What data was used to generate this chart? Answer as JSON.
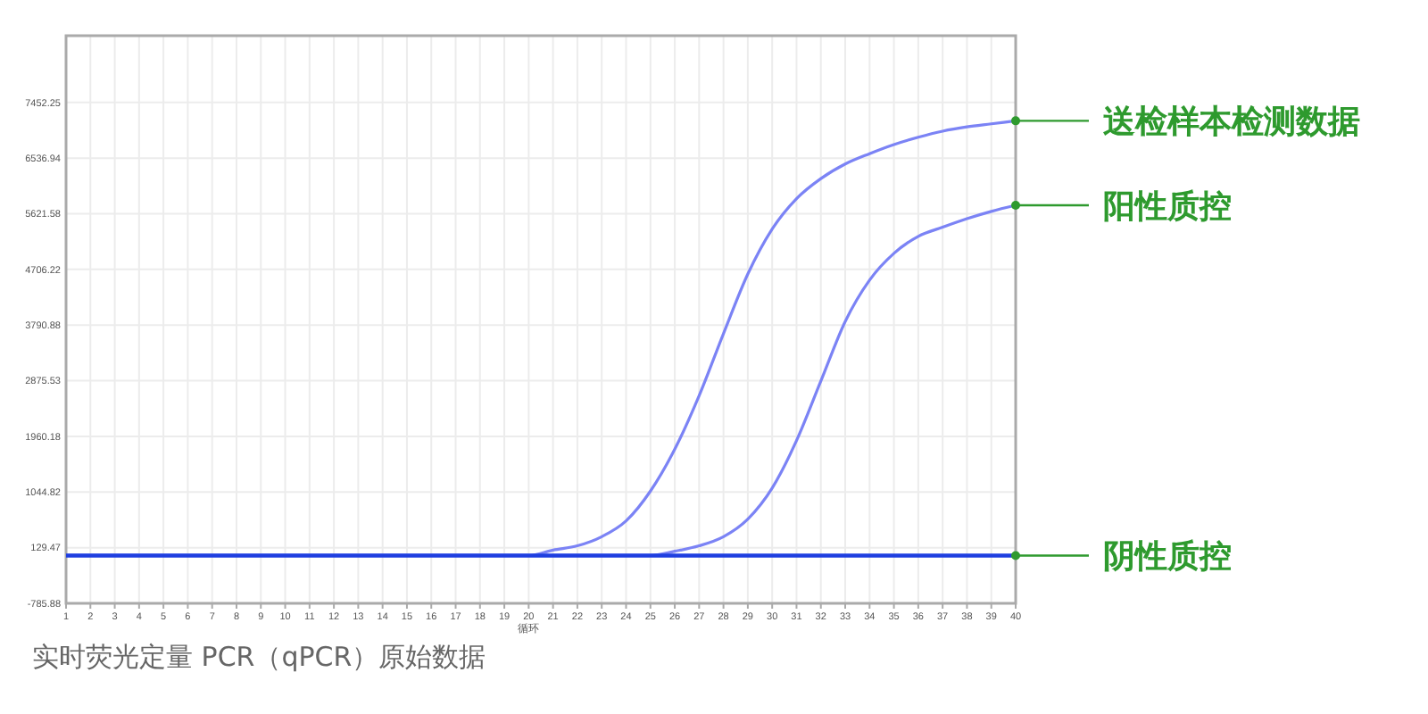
{
  "chart_data": {
    "type": "line",
    "xlabel": "循环",
    "annotations": [
      "实时荧光定量 PCR（qPCR）原始数据"
    ],
    "x": [
      1,
      2,
      3,
      4,
      5,
      6,
      7,
      8,
      9,
      10,
      11,
      12,
      13,
      14,
      15,
      16,
      17,
      18,
      19,
      20,
      21,
      22,
      23,
      24,
      25,
      26,
      27,
      28,
      29,
      30,
      31,
      32,
      33,
      34,
      35,
      36,
      37,
      38,
      39,
      40
    ],
    "series": [
      {
        "name": "送检样本检测数据",
        "color": "#7b83f5",
        "values": [
          0,
          0,
          0,
          0,
          0,
          0,
          0,
          0,
          0,
          0,
          0,
          0,
          0,
          0,
          0,
          0,
          0,
          0,
          0,
          0,
          90,
          160,
          310,
          570,
          1060,
          1750,
          2630,
          3650,
          4630,
          5370,
          5870,
          6200,
          6440,
          6610,
          6760,
          6880,
          6980,
          7050,
          7100,
          7150
        ]
      },
      {
        "name": "阳性质控",
        "color": "#7b83f5",
        "values": [
          0,
          0,
          0,
          0,
          0,
          0,
          0,
          0,
          0,
          0,
          0,
          0,
          0,
          0,
          0,
          0,
          0,
          0,
          0,
          0,
          0,
          0,
          0,
          0,
          0,
          70,
          160,
          310,
          600,
          1110,
          1890,
          2870,
          3850,
          4530,
          4970,
          5250,
          5400,
          5540,
          5660,
          5760
        ]
      },
      {
        "name": "阴性质控",
        "color": "#1f3fe0",
        "values": [
          0,
          0,
          0,
          0,
          0,
          0,
          0,
          0,
          0,
          0,
          0,
          0,
          0,
          0,
          0,
          0,
          0,
          0,
          0,
          0,
          0,
          0,
          0,
          0,
          0,
          0,
          0,
          0,
          0,
          0,
          0,
          0,
          0,
          0,
          0,
          0,
          0,
          0,
          0,
          0
        ]
      }
    ],
    "xlim": [
      1,
      40
    ],
    "xticks": [
      1,
      2,
      3,
      4,
      5,
      6,
      7,
      8,
      9,
      10,
      11,
      12,
      13,
      14,
      15,
      16,
      17,
      18,
      19,
      20,
      21,
      22,
      23,
      24,
      25,
      26,
      27,
      28,
      29,
      30,
      31,
      32,
      33,
      34,
      35,
      36,
      37,
      38,
      39,
      40
    ],
    "ylim": [
      -785.88,
      8550
    ],
    "yticks": [
      -785.88,
      129.47,
      1044.82,
      1960.18,
      2875.53,
      3790.88,
      4706.22,
      5621.58,
      6536.94,
      7452.25
    ],
    "grid": true,
    "legend": "right"
  }
}
